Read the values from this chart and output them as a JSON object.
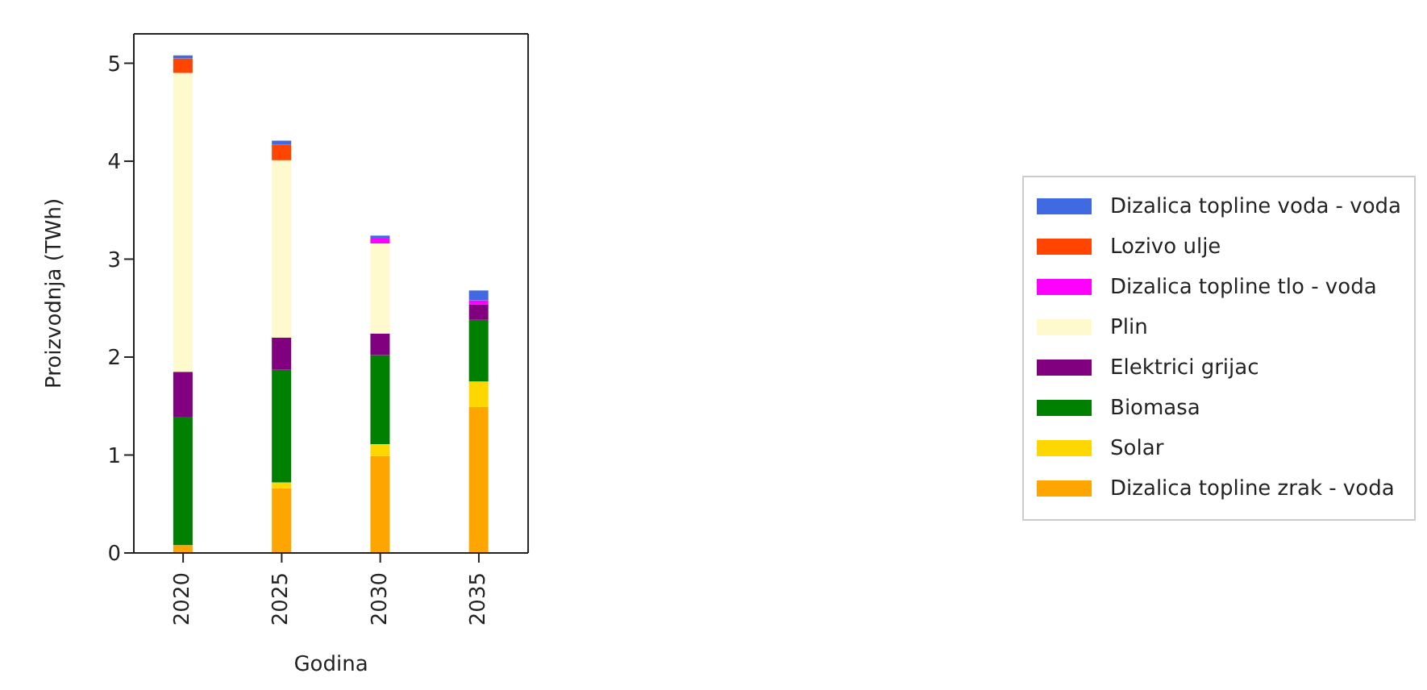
{
  "chart_data": {
    "type": "bar",
    "stacked": true,
    "xlabel": "Godina",
    "ylabel": "Proizvodnja (TWh)",
    "categories": [
      "2020",
      "2025",
      "2030",
      "2035"
    ],
    "series": [
      {
        "name": "Dizalica topline zrak - voda",
        "color": "#ffa500",
        "values": [
          0.08,
          0.66,
          0.99,
          1.49
        ]
      },
      {
        "name": "Solar",
        "color": "#ffd700",
        "values": [
          0,
          0.06,
          0.12,
          0.26
        ]
      },
      {
        "name": "Biomasa",
        "color": "#008000",
        "values": [
          1.31,
          1.15,
          0.91,
          0.63
        ]
      },
      {
        "name": "Elektrici grijac",
        "color": "#800080",
        "values": [
          0.46,
          0.33,
          0.22,
          0.16
        ]
      },
      {
        "name": "Plin",
        "color": "#fffacd",
        "values": [
          3.05,
          1.81,
          0.92,
          0
        ]
      },
      {
        "name": "Dizalica topline tlo - voda",
        "color": "#ff00ff",
        "values": [
          0,
          0,
          0.05,
          0.04
        ]
      },
      {
        "name": "Lozivo ulje",
        "color": "#ff4500",
        "values": [
          0.15,
          0.16,
          0,
          0
        ]
      },
      {
        "name": "Dizalica topline voda - voda",
        "color": "#4169e1",
        "values": [
          0.03,
          0.04,
          0.03,
          0.1
        ]
      }
    ],
    "ylim": [
      0,
      5.3
    ],
    "yticks": [
      0,
      1,
      2,
      3,
      4,
      5
    ],
    "grid": false,
    "legend": "right"
  }
}
